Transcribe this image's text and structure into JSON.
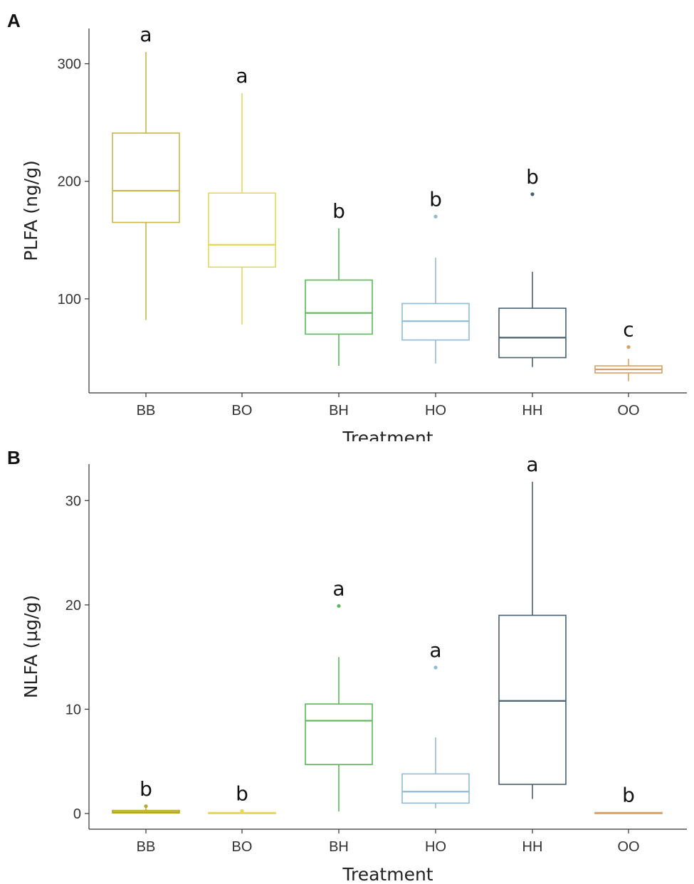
{
  "chart_data": [
    {
      "panel": "A",
      "type": "boxplot",
      "xlabel": "Treatment",
      "ylabel": "PLFA (ng/g)",
      "ylim": [
        20,
        330
      ],
      "yticks": [
        100,
        200,
        300
      ],
      "categories": [
        "BB",
        "BO",
        "BH",
        "HO",
        "HH",
        "OO"
      ],
      "boxes": [
        {
          "category": "BB",
          "whisker_low": 82,
          "q1": 165,
          "median": 192,
          "q3": 241,
          "whisker_high": 310,
          "outliers": [],
          "letter": "a",
          "color": "#c9b54a"
        },
        {
          "category": "BO",
          "whisker_low": 78,
          "q1": 127,
          "median": 146,
          "q3": 190,
          "whisker_high": 275,
          "outliers": [],
          "letter": "a",
          "color": "#e6d65a"
        },
        {
          "category": "BH",
          "whisker_low": 43,
          "q1": 70,
          "median": 88,
          "q3": 116,
          "whisker_high": 160,
          "outliers": [],
          "letter": "b",
          "color": "#5cb85c"
        },
        {
          "category": "HO",
          "whisker_low": 45,
          "q1": 65,
          "median": 81,
          "q3": 96,
          "whisker_high": 135,
          "outliers": [
            170
          ],
          "letter": "b",
          "color": "#8fbcd4"
        },
        {
          "category": "HH",
          "whisker_low": 42,
          "q1": 50,
          "median": 67,
          "q3": 92,
          "whisker_high": 123,
          "outliers": [
            189
          ],
          "letter": "b",
          "color": "#4a5f70"
        },
        {
          "category": "OO",
          "whisker_low": 30,
          "q1": 37,
          "median": 40,
          "q3": 43,
          "whisker_high": 49,
          "outliers": [
            59
          ],
          "letter": "c",
          "color": "#d9a066"
        }
      ]
    },
    {
      "panel": "B",
      "type": "boxplot",
      "xlabel": "Treatment",
      "ylabel": "NLFA (µg/g)",
      "ylim": [
        -1.5,
        33.5
      ],
      "yticks": [
        0,
        10,
        20,
        30
      ],
      "categories": [
        "BB",
        "BO",
        "BH",
        "HO",
        "HH",
        "OO"
      ],
      "boxes": [
        {
          "category": "BB",
          "whisker_low": 0.0,
          "q1": 0.05,
          "median": 0.15,
          "q3": 0.3,
          "whisker_high": 0.5,
          "outliers": [
            0.7
          ],
          "letter": "b",
          "color": "#b8a82a"
        },
        {
          "category": "BO",
          "whisker_low": 0.0,
          "q1": 0.02,
          "median": 0.05,
          "q3": 0.1,
          "whisker_high": 0.15,
          "outliers": [
            0.25
          ],
          "letter": "b",
          "color": "#e6d65a"
        },
        {
          "category": "BH",
          "whisker_low": 0.2,
          "q1": 4.7,
          "median": 8.9,
          "q3": 10.5,
          "whisker_high": 15.0,
          "outliers": [
            19.9
          ],
          "letter": "a",
          "color": "#5cb85c"
        },
        {
          "category": "HO",
          "whisker_low": 0.5,
          "q1": 1.0,
          "median": 2.1,
          "q3": 3.8,
          "whisker_high": 7.3,
          "outliers": [
            14.0
          ],
          "letter": "a",
          "color": "#8fbcd4"
        },
        {
          "category": "HH",
          "whisker_low": 1.4,
          "q1": 2.8,
          "median": 10.8,
          "q3": 19.0,
          "whisker_high": 31.8,
          "outliers": [],
          "letter": "a",
          "color": "#4a5f70"
        },
        {
          "category": "OO",
          "whisker_low": 0.0,
          "q1": 0.0,
          "median": 0.05,
          "q3": 0.1,
          "whisker_high": 0.12,
          "outliers": [],
          "letter": "b",
          "color": "#d9a066"
        }
      ]
    }
  ]
}
